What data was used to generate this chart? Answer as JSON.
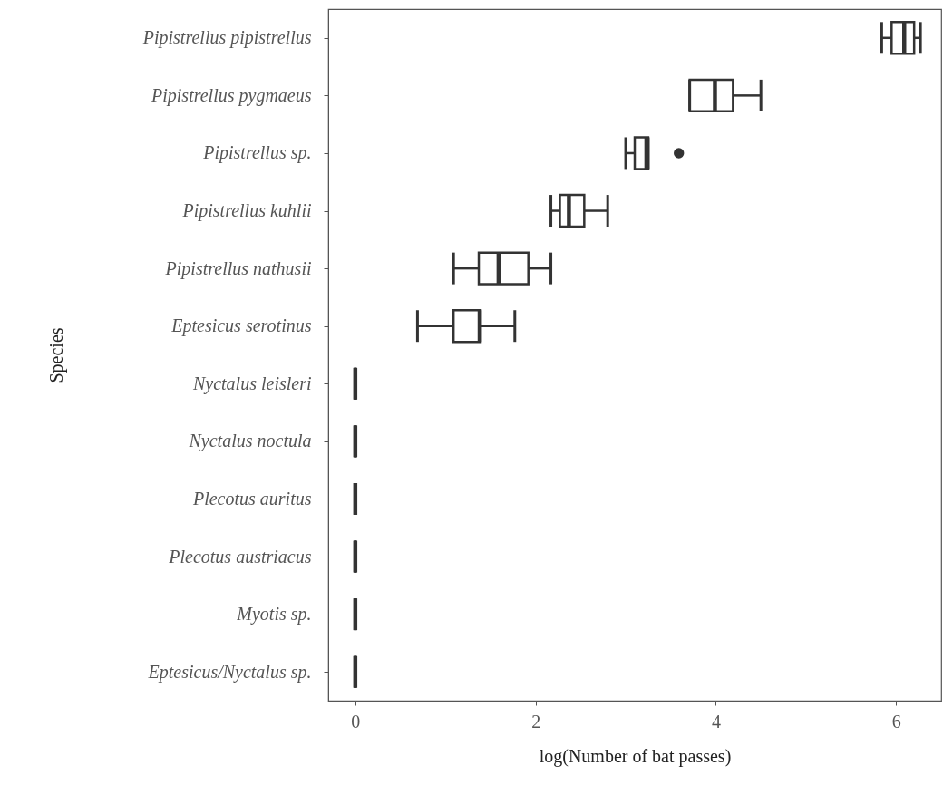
{
  "chart_data": {
    "type": "box",
    "orientation": "horizontal",
    "xlabel": "log(Number of bat passes)",
    "ylabel": "Species",
    "categories": [
      "Pipistrellus pipistrellus",
      "Pipistrellus pygmaeus",
      "Pipistrellus sp.",
      "Pipistrellus kuhlii",
      "Pipistrellus nathusii",
      "Eptesicus serotinus",
      "Nyctalus leisleri",
      "Nyctalus noctula",
      "Plecotus auritus",
      "Plecotus austriacus",
      "Myotis sp.",
      "Eptesicus/Nyctalus sp."
    ],
    "boxes": [
      {
        "low": 5.84,
        "q1": 5.95,
        "median": 6.09,
        "q3": 6.2,
        "high": 6.27
      },
      {
        "low": 3.71,
        "q1": 3.71,
        "median": 3.99,
        "q3": 4.19,
        "high": 4.5
      },
      {
        "low": 3.0,
        "q1": 3.1,
        "median": 3.23,
        "q3": 3.25,
        "high": 3.25,
        "outliers": [
          3.59
        ]
      },
      {
        "low": 2.17,
        "q1": 2.27,
        "median": 2.37,
        "q3": 2.54,
        "high": 2.8
      },
      {
        "low": 1.09,
        "q1": 1.37,
        "median": 1.59,
        "q3": 1.92,
        "high": 2.17
      },
      {
        "low": 0.69,
        "q1": 1.09,
        "median": 1.38,
        "q3": 1.39,
        "high": 1.77
      },
      {
        "low": 0,
        "q1": 0,
        "median": 0,
        "q3": 0,
        "high": 0
      },
      {
        "low": 0,
        "q1": 0,
        "median": 0,
        "q3": 0,
        "high": 0
      },
      {
        "low": 0,
        "q1": 0,
        "median": 0,
        "q3": 0,
        "high": 0
      },
      {
        "low": 0,
        "q1": 0,
        "median": 0,
        "q3": 0,
        "high": 0
      },
      {
        "low": 0,
        "q1": 0,
        "median": 0,
        "q3": 0,
        "high": 0
      },
      {
        "low": 0,
        "q1": 0,
        "median": 0,
        "q3": 0,
        "high": 0
      }
    ],
    "xlim": [
      -0.3,
      6.5
    ],
    "xticks": [
      0,
      2,
      4,
      6
    ],
    "grid": false
  }
}
